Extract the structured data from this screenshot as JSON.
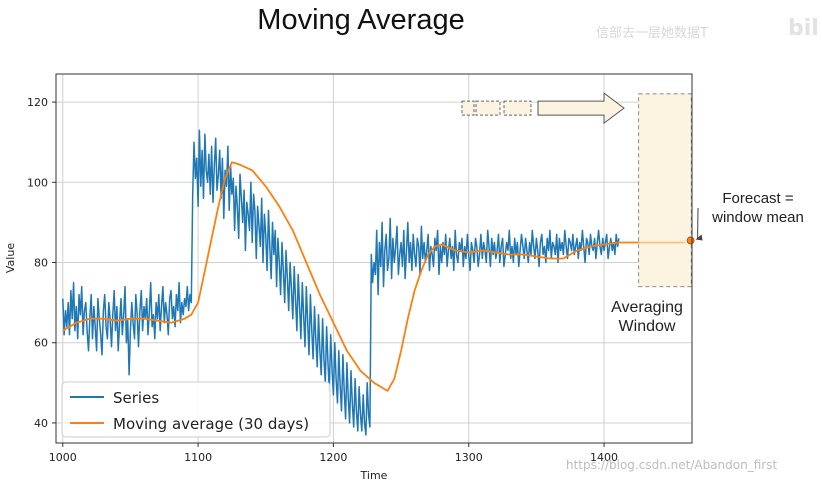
{
  "slide": {
    "title": "Moving Average",
    "watermark_top": "信部去一层她数据T",
    "watermark_logo": "bil",
    "watermark_url": "https://blog.csdn.net/Abandon_first"
  },
  "annotations": {
    "forecast_line1": "Forecast =",
    "forecast_line2": "window mean",
    "window_line1": "Averaging",
    "window_line2": "Window"
  },
  "colors": {
    "series": "#1f77b4",
    "moving_average": "#ff7f0e",
    "window_fill": "#fdf3e1"
  },
  "chart_data": {
    "type": "line",
    "xlabel": "Time",
    "ylabel": "Value",
    "xlim": [
      995,
      1465
    ],
    "ylim": [
      35,
      127
    ],
    "xticks": [
      1000,
      1100,
      1200,
      1300,
      1400
    ],
    "yticks": [
      40,
      60,
      80,
      100,
      120
    ],
    "grid": true,
    "legend_position": "bottom-left",
    "averaging_window": [
      1430,
      1460
    ],
    "forecast": {
      "x": 1461,
      "y": 85
    },
    "series": [
      {
        "name": "Series",
        "color": "#1f77b4",
        "x_start": 1000,
        "values": [
          71,
          62,
          68,
          64,
          70,
          62,
          73,
          66,
          75,
          63,
          69,
          61,
          72,
          67,
          74,
          62,
          68,
          70,
          63,
          58,
          66,
          72,
          61,
          69,
          64,
          58,
          71,
          66,
          62,
          57,
          68,
          72,
          64,
          61,
          70,
          66,
          59,
          67,
          73,
          63,
          69,
          58,
          65,
          71,
          62,
          67,
          74,
          60,
          66,
          52,
          63,
          70,
          65,
          61,
          72,
          67,
          59,
          68,
          73,
          63,
          69,
          66,
          71,
          62,
          68,
          75,
          64,
          67,
          61,
          70,
          66,
          72,
          63,
          69,
          74,
          65,
          70,
          67,
          62,
          71,
          73,
          66,
          69,
          64,
          72,
          68,
          75,
          65,
          70,
          67,
          71,
          69,
          74,
          68,
          72,
          70,
          97,
          110,
          101,
          106,
          94,
          113,
          99,
          108,
          96,
          112,
          103,
          100,
          107,
          97,
          109,
          95,
          104,
          111,
          98,
          102,
          108,
          96,
          106,
          91,
          103,
          99,
          109,
          93,
          104,
          97,
          101,
          88,
          99,
          94,
          86,
          102,
          96,
          90,
          98,
          83,
          95,
          92,
          88,
          100,
          85,
          97,
          93,
          81,
          94,
          89,
          84,
          96,
          80,
          92,
          87,
          78,
          93,
          84,
          76,
          90,
          82,
          88,
          74,
          86,
          80,
          72,
          85,
          78,
          70,
          83,
          76,
          68,
          80,
          73,
          66,
          79,
          71,
          63,
          77,
          69,
          61,
          75,
          67,
          59,
          74,
          65,
          57,
          72,
          63,
          56,
          69,
          61,
          54,
          67,
          58,
          52,
          66,
          56,
          50,
          64,
          55,
          48,
          62,
          53,
          47,
          60,
          51,
          45,
          58,
          49,
          43,
          57,
          48,
          41,
          55,
          46,
          40,
          53,
          45,
          39,
          51,
          43,
          38,
          49,
          42,
          38,
          47,
          40,
          37,
          50,
          42,
          39,
          82,
          75,
          80,
          77,
          88,
          72,
          85,
          79,
          90,
          74,
          83,
          87,
          78,
          81,
          91,
          76,
          86,
          80,
          84,
          89,
          77,
          82,
          85,
          79,
          88,
          76,
          83,
          90,
          80,
          85,
          78,
          87,
          82,
          79,
          86,
          84,
          77,
          89,
          81,
          85,
          80,
          83,
          87,
          78,
          84,
          82,
          79,
          86,
          83,
          88,
          77,
          84,
          80,
          85,
          82,
          87,
          79,
          83,
          86,
          81,
          84,
          78,
          88,
          82,
          80,
          85,
          83,
          86,
          79,
          84,
          81,
          87,
          82,
          78,
          85,
          83,
          80,
          86,
          84,
          79,
          82,
          87,
          81,
          85,
          83,
          80,
          88,
          84,
          79,
          86,
          82,
          85,
          81,
          83,
          87,
          80,
          84,
          86,
          79,
          82,
          85,
          83,
          88,
          81,
          84,
          80,
          86,
          82,
          85,
          79,
          83,
          87,
          84,
          81,
          86,
          83,
          80,
          85,
          82,
          88,
          84,
          81,
          86,
          83,
          79,
          85,
          87,
          82,
          84,
          80,
          86,
          83,
          88,
          81,
          85,
          84,
          82,
          87,
          80,
          86,
          83,
          85,
          82,
          88,
          84,
          81,
          86,
          85,
          83,
          87,
          82,
          84,
          86,
          81,
          85,
          83,
          88,
          84,
          80,
          86,
          85,
          82,
          87,
          84,
          83,
          86,
          81,
          85,
          88,
          84,
          82,
          86,
          83,
          85,
          87,
          81,
          84,
          86,
          83,
          85,
          82,
          87,
          84,
          86
        ]
      },
      {
        "name": "Moving average (30 days)",
        "color": "#ff7f0e",
        "points": [
          [
            1000,
            63
          ],
          [
            1010,
            65
          ],
          [
            1020,
            66
          ],
          [
            1030,
            66
          ],
          [
            1040,
            65.5
          ],
          [
            1050,
            66
          ],
          [
            1060,
            66
          ],
          [
            1070,
            65.5
          ],
          [
            1080,
            65
          ],
          [
            1090,
            66
          ],
          [
            1095,
            67
          ],
          [
            1100,
            70
          ],
          [
            1105,
            78
          ],
          [
            1110,
            86
          ],
          [
            1115,
            94
          ],
          [
            1120,
            101
          ],
          [
            1125,
            105
          ],
          [
            1130,
            104.5
          ],
          [
            1140,
            103
          ],
          [
            1150,
            99
          ],
          [
            1160,
            94
          ],
          [
            1170,
            88
          ],
          [
            1180,
            80
          ],
          [
            1190,
            72
          ],
          [
            1200,
            65
          ],
          [
            1210,
            58
          ],
          [
            1220,
            53
          ],
          [
            1230,
            50
          ],
          [
            1240,
            48
          ],
          [
            1245,
            51
          ],
          [
            1250,
            58
          ],
          [
            1255,
            66
          ],
          [
            1260,
            73
          ],
          [
            1265,
            78
          ],
          [
            1270,
            82
          ],
          [
            1275,
            84
          ],
          [
            1280,
            84.5
          ],
          [
            1290,
            83
          ],
          [
            1300,
            82.5
          ],
          [
            1310,
            83
          ],
          [
            1320,
            82.5
          ],
          [
            1330,
            82
          ],
          [
            1340,
            82
          ],
          [
            1350,
            81.5
          ],
          [
            1360,
            81
          ],
          [
            1370,
            81
          ],
          [
            1380,
            83
          ],
          [
            1390,
            84
          ],
          [
            1400,
            84.5
          ],
          [
            1410,
            85
          ],
          [
            1420,
            85
          ],
          [
            1430,
            85
          ],
          [
            1440,
            85
          ],
          [
            1450,
            85
          ],
          [
            1460,
            85
          ]
        ]
      }
    ]
  }
}
